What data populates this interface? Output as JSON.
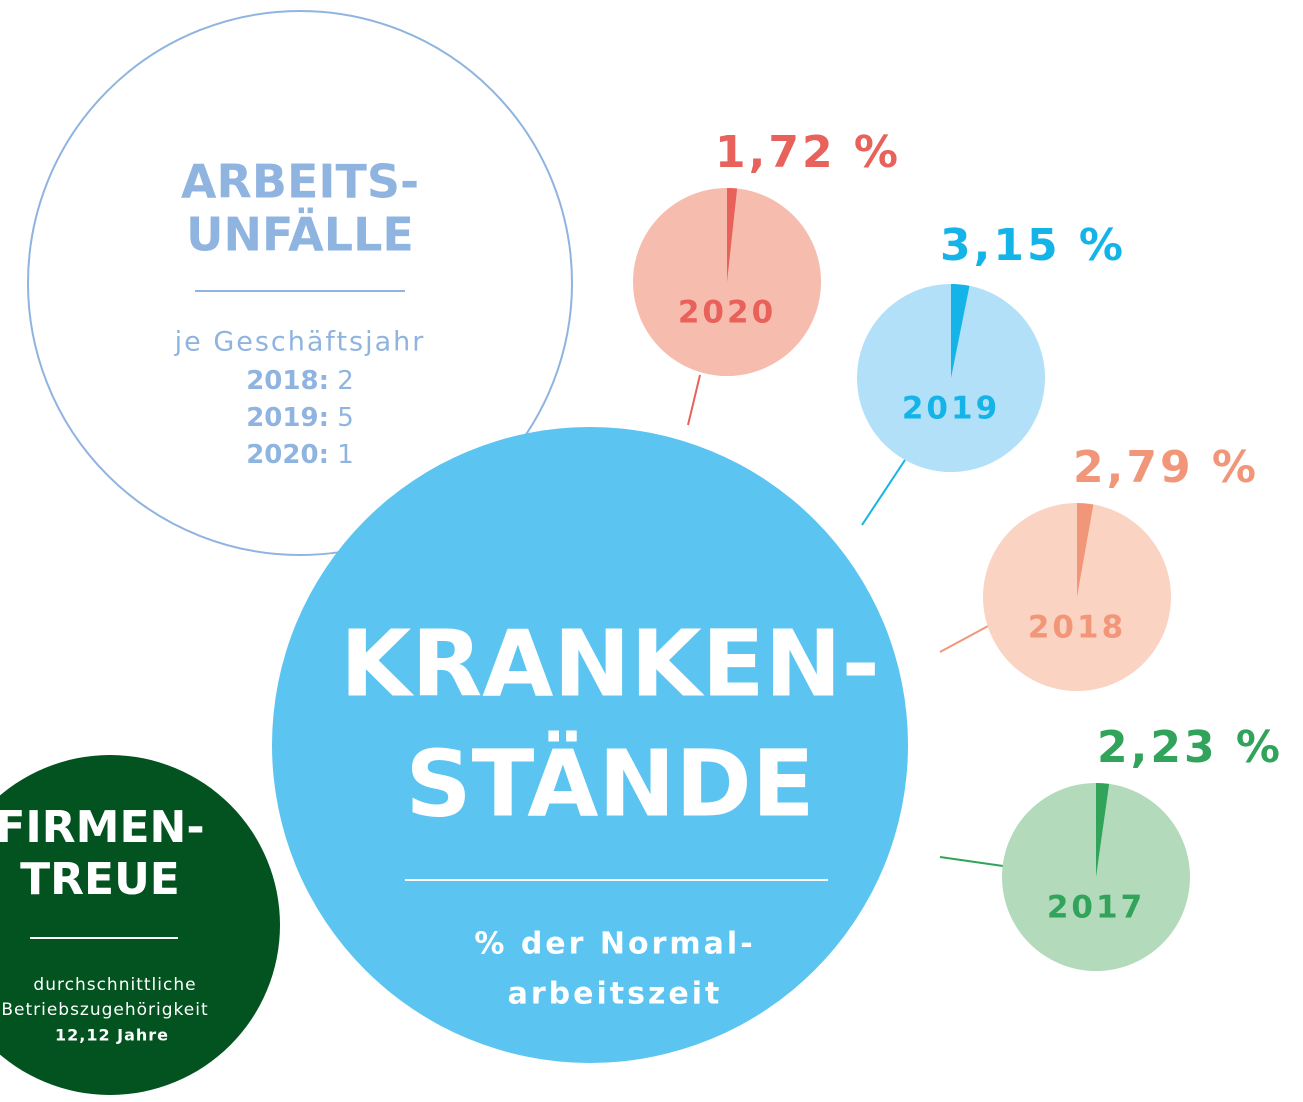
{
  "arbeitsunfaelle": {
    "title_lines": [
      "ARBEITS-",
      "UNFÄLLE"
    ],
    "subtitle": "je Geschäftsjahr",
    "rows": [
      {
        "year": "2018:",
        "value": 2
      },
      {
        "year": "2019:",
        "value": 5
      },
      {
        "year": "2020:",
        "value": 1
      }
    ]
  },
  "krankenstaende": {
    "title_lines": [
      "KRANKEN-",
      "STÄNDE"
    ],
    "subtitle_lines": [
      "% der Normal-",
      "arbeitszeit"
    ],
    "pies": [
      {
        "year": "2020",
        "value": 1.72,
        "value_label": "1,72 %",
        "color": "#e8615a",
        "fill": "#f6bcae"
      },
      {
        "year": "2019",
        "value": 3.15,
        "value_label": "3,15 %",
        "color": "#15b4e8",
        "fill": "#b2e0f8"
      },
      {
        "year": "2018",
        "value": 2.79,
        "value_label": "2,79 %",
        "color": "#f2967a",
        "fill": "#fbd3c3"
      },
      {
        "year": "2017",
        "value": 2.23,
        "value_label": "2,23 %",
        "color": "#31a35a",
        "fill": "#b2dabb"
      }
    ]
  },
  "firmentreue": {
    "title_lines": [
      "FIRMEN-",
      "TREUE"
    ],
    "subtitle_lines": [
      "durchschnittliche",
      "Betriebszugehörigkeit"
    ],
    "value_label": "12,12 Jahre"
  }
}
